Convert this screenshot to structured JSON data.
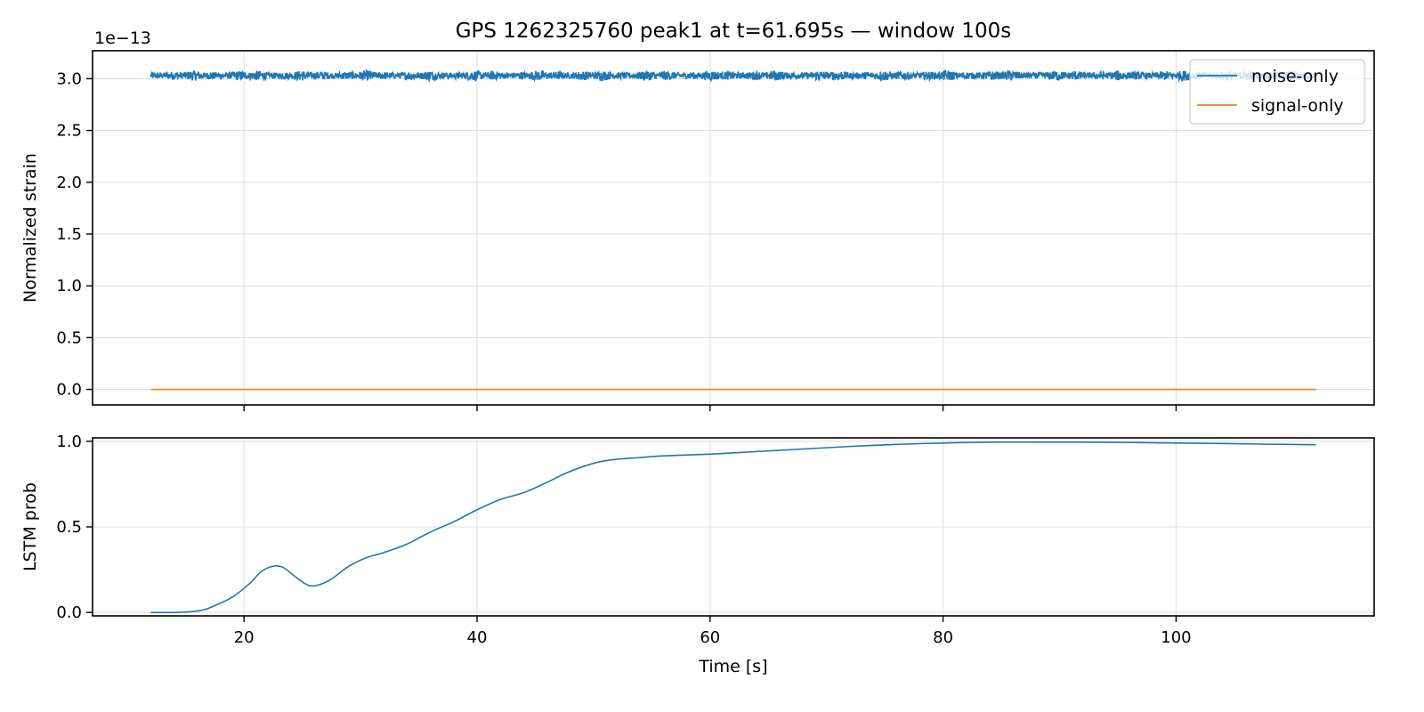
{
  "chart_data": [
    {
      "type": "line",
      "title": "GPS 1262325760 peak1 at t=61.695s — window 100s",
      "xlabel": "",
      "ylabel": "Normalized strain",
      "y_offset_label": "1e−13",
      "xlim": [
        7,
        117
      ],
      "ylim": [
        -0.15,
        3.27
      ],
      "x_ticks": [
        20,
        40,
        60,
        80,
        100
      ],
      "x_ticklabels_visible": false,
      "y_ticks": [
        0.0,
        0.5,
        1.0,
        1.5,
        2.0,
        2.5,
        3.0
      ],
      "y_ticklabels": [
        "0.0",
        "0.5",
        "1.0",
        "1.5",
        "2.0",
        "2.5",
        "3.0"
      ],
      "grid": true,
      "legend": "upper-right",
      "series": [
        {
          "name": "noise-only",
          "color": "#1f77b4",
          "x_range": [
            12,
            112
          ],
          "center": 3.03,
          "amplitude": 0.05,
          "style": "dense-noise"
        },
        {
          "name": "signal-only",
          "color": "#ff7f0e",
          "x": [
            12,
            112
          ],
          "y": [
            0.0,
            0.0
          ]
        }
      ]
    },
    {
      "type": "line",
      "title": "",
      "xlabel": "Time [s]",
      "ylabel": "LSTM prob",
      "xlim": [
        7,
        117
      ],
      "ylim": [
        -0.02,
        1.02
      ],
      "x_ticks": [
        20,
        40,
        60,
        80,
        100
      ],
      "x_ticklabels": [
        "20",
        "40",
        "60",
        "80",
        "100"
      ],
      "y_ticks": [
        0.0,
        0.5,
        1.0
      ],
      "y_ticklabels": [
        "0.0",
        "0.5",
        "1.0"
      ],
      "grid": true,
      "series": [
        {
          "name": "",
          "color": "#1f77b4",
          "x": [
            12,
            14,
            15.5,
            16.5,
            17.5,
            19,
            20.5,
            21.5,
            22.5,
            23.3,
            24.2,
            25.2,
            25.8,
            26.6,
            27.6,
            29,
            30.5,
            32,
            34,
            36,
            38,
            40,
            42,
            44,
            46,
            47.5,
            49,
            50.5,
            52,
            54,
            56,
            60,
            64,
            68,
            72,
            76,
            80,
            84,
            88,
            92,
            96,
            100,
            104,
            108,
            112
          ],
          "y": [
            0.0,
            0.0,
            0.005,
            0.015,
            0.04,
            0.09,
            0.17,
            0.24,
            0.27,
            0.265,
            0.22,
            0.17,
            0.155,
            0.165,
            0.2,
            0.27,
            0.32,
            0.35,
            0.4,
            0.47,
            0.53,
            0.6,
            0.66,
            0.7,
            0.76,
            0.81,
            0.85,
            0.88,
            0.895,
            0.905,
            0.915,
            0.925,
            0.94,
            0.955,
            0.97,
            0.982,
            0.99,
            0.995,
            0.995,
            0.995,
            0.993,
            0.99,
            0.987,
            0.983,
            0.98
          ]
        }
      ]
    }
  ]
}
